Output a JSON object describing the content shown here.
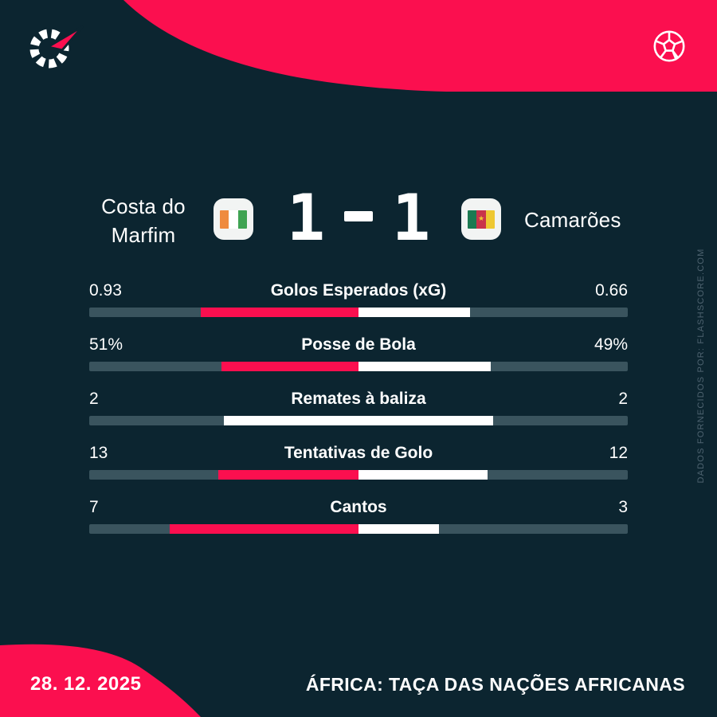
{
  "colors": {
    "background": "#0c2530",
    "accent_red": "#fb0f4f",
    "bar_track": "#3a545e",
    "bar_home": "#fb0f4f",
    "bar_away": "#ffffff",
    "watermark_text": "#4e6370"
  },
  "header": {
    "logo_icon": "flashscore-logo",
    "ball_icon": "soccer-ball"
  },
  "match": {
    "home": {
      "name_line1": "Costa do",
      "name_line2": "Marfim",
      "flag": "ivory-coast"
    },
    "away": {
      "name": "Camarões",
      "flag": "cameroon"
    },
    "score": {
      "home": "1",
      "separator": "-",
      "away": "1"
    }
  },
  "flags": {
    "ivory_coast": {
      "stripes": [
        "#ef8b3f",
        "#ffffff",
        "#3fa352"
      ]
    },
    "cameroon": {
      "stripes": [
        "#1c7a52",
        "#c9344a",
        "#eec832"
      ],
      "star": "#eec832",
      "star_glyph": "★"
    }
  },
  "stats": [
    {
      "home": "0.93",
      "label": "Golos Esperados (xG)",
      "away": "0.66",
      "home_value": 0.93,
      "away_value": 0.66,
      "home_color": "red"
    },
    {
      "home": "51%",
      "label": "Posse de Bola",
      "away": "49%",
      "home_value": 51,
      "away_value": 49,
      "home_color": "red"
    },
    {
      "home": "2",
      "label": "Remates à baliza",
      "away": "2",
      "home_value": 2,
      "away_value": 2,
      "home_color": "white"
    },
    {
      "home": "13",
      "label": "Tentativas de Golo",
      "away": "12",
      "home_value": 13,
      "away_value": 12,
      "home_color": "red"
    },
    {
      "home": "7",
      "label": "Cantos",
      "away": "3",
      "home_value": 7,
      "away_value": 3,
      "home_color": "red"
    }
  ],
  "watermark": "DADOS FORNECIDOS POR: FLASHSCORE.COM",
  "footer": {
    "date": "28. 12. 2025",
    "competition": "ÁFRICA: TAÇA DAS NAÇÕES AFRICANAS"
  },
  "chart_data": {
    "type": "bar",
    "orientation": "horizontal-paired",
    "title": "Costa do Marfim 1-1 Camarões",
    "categories": [
      "Golos Esperados (xG)",
      "Posse de Bola",
      "Remates à baliza",
      "Tentativas de Golo",
      "Cantos"
    ],
    "series": [
      {
        "name": "Costa do Marfim",
        "color": "#fb0f4f",
        "values": [
          0.93,
          51,
          2,
          13,
          7
        ]
      },
      {
        "name": "Camarões",
        "color": "#ffffff",
        "values": [
          0.66,
          49,
          2,
          12,
          3
        ]
      }
    ],
    "legend_position": "none",
    "grid": false,
    "note": "each paired bar is proportionally split at row center; total colored width fixed"
  }
}
